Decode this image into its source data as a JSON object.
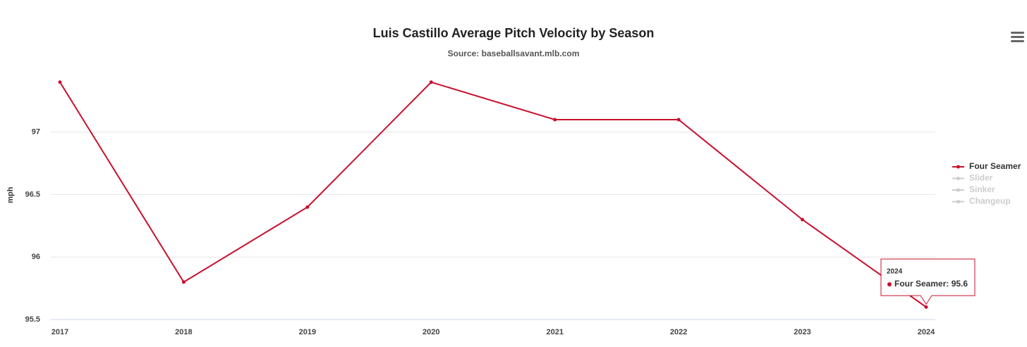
{
  "chart_data": {
    "type": "line",
    "title": "Luis Castillo Average Pitch Velocity by Season",
    "subtitle": "Source: baseballsavant.mlb.com",
    "y_label": "mph",
    "categories": [
      "2017",
      "2018",
      "2019",
      "2020",
      "2021",
      "2022",
      "2023",
      "2024"
    ],
    "series": [
      {
        "name": "Four Seamer",
        "color": "#c8102e",
        "visible": true,
        "values": [
          97.4,
          95.8,
          96.4,
          97.4,
          97.1,
          97.1,
          96.3,
          95.6
        ]
      },
      {
        "name": "Slider",
        "color": "#cccccc",
        "visible": false,
        "values": [
          null,
          null,
          null,
          null,
          null,
          null,
          null,
          null
        ]
      },
      {
        "name": "Sinker",
        "color": "#cccccc",
        "visible": false,
        "values": [
          null,
          null,
          null,
          null,
          null,
          null,
          null,
          null
        ]
      },
      {
        "name": "Changeup",
        "color": "#cccccc",
        "visible": false,
        "values": [
          null,
          null,
          null,
          null,
          null,
          null,
          null,
          null
        ]
      }
    ],
    "ylim": [
      95.5,
      97.5
    ],
    "yticks": [
      95.5,
      96,
      96.5,
      97
    ],
    "grid": true,
    "legend": "right",
    "tooltip": {
      "series": 0,
      "index": 7
    }
  }
}
